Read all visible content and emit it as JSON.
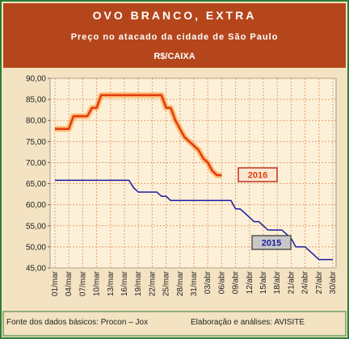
{
  "chart_data": {
    "type": "line",
    "title": "OVO BRANCO, EXTRA",
    "subtitle": "Preço no atacado da cidade de São Paulo",
    "unit": "R$/CAIXA",
    "source": "Fonte dos dados básicos: Procon – Jox",
    "credit": "Elaboração e análises: AVISITE",
    "categories": [
      "01/mar",
      null,
      null,
      "04/mar",
      null,
      null,
      "07/mar",
      null,
      null,
      "10/mar",
      null,
      null,
      "13/mar",
      null,
      null,
      "16/mar",
      null,
      null,
      "19/mar",
      null,
      null,
      "22/mar",
      null,
      null,
      "25/mar",
      null,
      null,
      "28/mar",
      null,
      null,
      "31/mar",
      null,
      null,
      "03/abr",
      null,
      null,
      "06/abr",
      null,
      null,
      "09/abr",
      null,
      null,
      "12/abr",
      null,
      null,
      "15/abr",
      null,
      null,
      "18/abr",
      null,
      null,
      "21/abr",
      null,
      null,
      "24/abr",
      null,
      null,
      "27/abr",
      null,
      null,
      "30/abr"
    ],
    "series": [
      {
        "name": "2016",
        "color": "#e03a10",
        "values": [
          78,
          78,
          78,
          78,
          81,
          81,
          81,
          81,
          83,
          83,
          86,
          86,
          86,
          86,
          86,
          86,
          86,
          86,
          86,
          86,
          86,
          86,
          86,
          86,
          83,
          83,
          80,
          78,
          76,
          75,
          74,
          73,
          71,
          70,
          68,
          67,
          67,
          null,
          null,
          null,
          null,
          null,
          null,
          null,
          null,
          null,
          null,
          null,
          null,
          null,
          null,
          null,
          null,
          null,
          null,
          null,
          null,
          null,
          null,
          null,
          null
        ]
      },
      {
        "name": "2015",
        "color": "#1a1aa0",
        "values": [
          65.8,
          65.8,
          65.8,
          65.8,
          65.8,
          65.8,
          65.8,
          65.8,
          65.8,
          65.8,
          65.8,
          65.8,
          65.8,
          65.8,
          65.8,
          65.8,
          65.8,
          64,
          63,
          63,
          63,
          63,
          63,
          62,
          62,
          61,
          61,
          61,
          61,
          61,
          61,
          61,
          61,
          61,
          61,
          61,
          61,
          61,
          61,
          59,
          59,
          58,
          57,
          56,
          56,
          55,
          54,
          54,
          54,
          54,
          53,
          52,
          50,
          50,
          50,
          49,
          48,
          47,
          47,
          47,
          47
        ]
      }
    ],
    "ylim": [
      45,
      90
    ],
    "yticks": [
      {
        "value": 45,
        "label": "45,00"
      },
      {
        "value": 50,
        "label": "50,00"
      },
      {
        "value": 55,
        "label": "55,00"
      },
      {
        "value": 60,
        "label": "60,00"
      },
      {
        "value": 65,
        "label": "65,00"
      },
      {
        "value": 70,
        "label": "70,00"
      },
      {
        "value": 75,
        "label": "75,00"
      },
      {
        "value": 80,
        "label": "80,00"
      },
      {
        "value": 85,
        "label": "85,00"
      },
      {
        "value": 90,
        "label": "90,00"
      }
    ],
    "grid": true
  }
}
